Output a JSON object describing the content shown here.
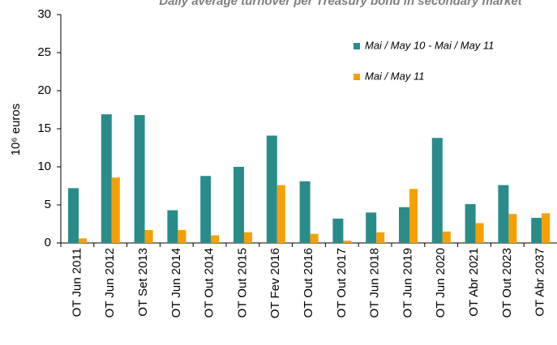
{
  "chart_data": {
    "type": "bar",
    "title": "Daily average turnover per Treasury bond in secondary market",
    "y_label": "10⁶ euros",
    "categories": [
      "OT Jun 2011",
      "OT Jun 2012",
      "OT Set 2013",
      "OT Jun 2014",
      "OT Out 2014",
      "OT Out 2015",
      "OT Fev 2016",
      "OT Out 2016",
      "OT Out 2017",
      "OT Jun 2018",
      "OT Jun 2019",
      "OT Jun 2020",
      "OT Abr 2021",
      "OT Out 2023",
      "OT Abr 2037"
    ],
    "series": [
      {
        "name": "Mai / May 10 - Mai / May 11",
        "color": "#2a8c8a",
        "values": [
          7.2,
          16.9,
          16.8,
          4.3,
          8.8,
          10.0,
          14.1,
          8.1,
          3.2,
          4.0,
          4.7,
          13.8,
          5.1,
          7.6,
          3.3
        ]
      },
      {
        "name": "Mai / May 11",
        "color": "#f5a000",
        "values": [
          0.6,
          8.6,
          1.7,
          1.7,
          1.0,
          1.4,
          7.6,
          1.2,
          0.3,
          1.4,
          7.1,
          1.5,
          2.6,
          3.8,
          3.9
        ]
      }
    ],
    "ylim": [
      0,
      30
    ],
    "yticks": [
      0,
      5,
      10,
      15,
      20,
      25,
      30
    ],
    "legend": "upper right"
  }
}
